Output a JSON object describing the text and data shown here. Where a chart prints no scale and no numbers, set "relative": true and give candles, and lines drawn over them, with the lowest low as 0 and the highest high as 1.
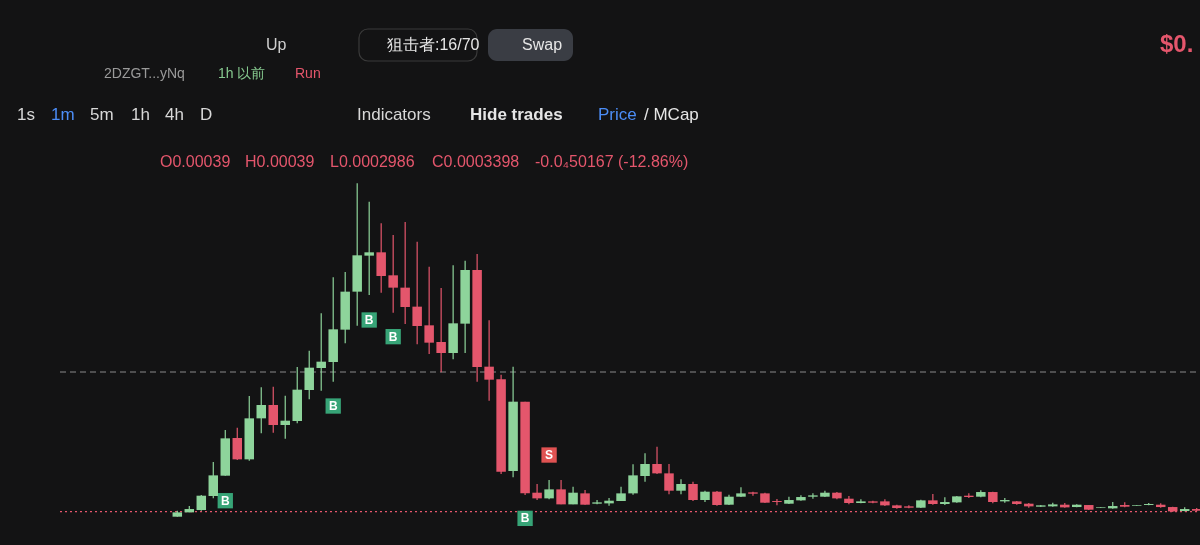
{
  "chart_data": {
    "type": "candlestick",
    "relative": true,
    "categories": [
      null,
      null,
      null,
      null,
      null,
      null,
      null,
      null,
      null,
      null,
      null,
      null,
      null,
      null,
      null,
      null,
      null,
      null,
      null,
      null,
      null,
      null,
      null,
      null,
      null,
      null,
      null,
      null,
      null,
      null,
      null,
      null,
      null,
      null,
      null,
      null,
      null,
      null,
      null,
      null,
      null,
      null,
      null,
      null,
      null,
      null,
      null,
      null,
      null,
      null,
      null,
      null,
      null,
      null,
      null,
      null,
      null,
      null,
      null,
      null,
      null,
      null,
      null,
      null,
      null,
      null,
      null,
      null,
      null,
      null,
      null,
      null,
      null,
      null,
      null,
      null,
      null,
      null,
      null,
      null,
      null,
      null,
      null,
      null,
      null,
      null
    ],
    "ohlc": [
      [
        0,
        0.018,
        0,
        0.013
      ],
      [
        0.013,
        0.032,
        0.013,
        0.023
      ],
      [
        0.02,
        0.065,
        0.018,
        0.063
      ],
      [
        0.062,
        0.164,
        0.055,
        0.124
      ],
      [
        0.123,
        0.26,
        0.123,
        0.235
      ],
      [
        0.236,
        0.267,
        0.17,
        0.172
      ],
      [
        0.172,
        0.362,
        0.168,
        0.295
      ],
      [
        0.295,
        0.388,
        0.25,
        0.335
      ],
      [
        0.335,
        0.39,
        0.252,
        0.275
      ],
      [
        0.275,
        0.363,
        0.234,
        0.288
      ],
      [
        0.287,
        0.449,
        0.28,
        0.381
      ],
      [
        0.38,
        0.498,
        0.352,
        0.447
      ],
      [
        0.446,
        0.61,
        0.378,
        0.465
      ],
      [
        0.464,
        0.718,
        0.405,
        0.562
      ],
      [
        0.561,
        0.734,
        0.52,
        0.675
      ],
      [
        0.675,
        1,
        0.573,
        0.784
      ],
      [
        0.783,
        0.945,
        0.665,
        0.793
      ],
      [
        0.793,
        0.88,
        0.672,
        0.722
      ],
      [
        0.724,
        0.845,
        0.612,
        0.687
      ],
      [
        0.687,
        0.884,
        0.578,
        0.629
      ],
      [
        0.63,
        0.825,
        0.517,
        0.572
      ],
      [
        0.574,
        0.75,
        0.488,
        0.522
      ],
      [
        0.524,
        0.686,
        0.433,
        0.491
      ],
      [
        0.491,
        0.754,
        0.472,
        0.58
      ],
      [
        0.579,
        0.768,
        0.491,
        0.74
      ],
      [
        0.74,
        0.788,
        0.405,
        0.449
      ],
      [
        0.45,
        0.589,
        0.348,
        0.411
      ],
      [
        0.412,
        0.426,
        0.128,
        0.135
      ],
      [
        0.137,
        0.45,
        0.118,
        0.345
      ],
      [
        0.345,
        0.345,
        0.065,
        0.07
      ],
      [
        0.072,
        0.098,
        0.05,
        0.055
      ],
      [
        0.055,
        0.11,
        0.052,
        0.082
      ],
      [
        0.082,
        0.11,
        0.037,
        0.037
      ],
      [
        0.037,
        0.09,
        0.037,
        0.072
      ],
      [
        0.07,
        0.08,
        0.036,
        0.036
      ],
      [
        0.039,
        0.05,
        0.037,
        0.043
      ],
      [
        0.04,
        0.056,
        0.033,
        0.048
      ],
      [
        0.047,
        0.09,
        0.047,
        0.07
      ],
      [
        0.07,
        0.157,
        0.066,
        0.124
      ],
      [
        0.122,
        0.19,
        0.105,
        0.158
      ],
      [
        0.158,
        0.21,
        0.128,
        0.13
      ],
      [
        0.13,
        0.158,
        0.067,
        0.078
      ],
      [
        0.078,
        0.112,
        0.067,
        0.098
      ],
      [
        0.098,
        0.105,
        0.047,
        0.05
      ],
      [
        0.05,
        0.078,
        0.044,
        0.075
      ],
      [
        0.075,
        0.077,
        0.033,
        0.035
      ],
      [
        0.036,
        0.066,
        0.035,
        0.06
      ],
      [
        0.06,
        0.088,
        0.059,
        0.07
      ],
      [
        0.073,
        0.075,
        0.063,
        0.069
      ],
      [
        0.07,
        0.072,
        0.041,
        0.042
      ],
      [
        0.047,
        0.053,
        0.034,
        0.044
      ],
      [
        0.039,
        0.06,
        0.038,
        0.05
      ],
      [
        0.049,
        0.064,
        0.048,
        0.059
      ],
      [
        0.06,
        0.07,
        0.054,
        0.064
      ],
      [
        0.06,
        0.078,
        0.059,
        0.072
      ],
      [
        0.072,
        0.074,
        0.052,
        0.055
      ],
      [
        0.054,
        0.062,
        0.037,
        0.041
      ],
      [
        0.041,
        0.052,
        0.04,
        0.046
      ],
      [
        0.046,
        0.048,
        0.04,
        0.042
      ],
      [
        0.046,
        0.052,
        0.032,
        0.034
      ],
      [
        0.034,
        0.036,
        0.024,
        0.026
      ],
      [
        0.031,
        0.034,
        0.025,
        0.027
      ],
      [
        0.027,
        0.051,
        0.026,
        0.049
      ],
      [
        0.049,
        0.068,
        0.036,
        0.038
      ],
      [
        0.038,
        0.058,
        0.035,
        0.044
      ],
      [
        0.043,
        0.062,
        0.042,
        0.061
      ],
      [
        0.063,
        0.07,
        0.056,
        0.059
      ],
      [
        0.06,
        0.079,
        0.058,
        0.074
      ],
      [
        0.074,
        0.075,
        0.04,
        0.044
      ],
      [
        0.046,
        0.056,
        0.042,
        0.05
      ],
      [
        0.046,
        0.047,
        0.036,
        0.038
      ],
      [
        0.039,
        0.041,
        0.027,
        0.031
      ],
      [
        0.03,
        0.035,
        0.029,
        0.034
      ],
      [
        0.031,
        0.042,
        0.03,
        0.037
      ],
      [
        0.036,
        0.041,
        0.027,
        0.028
      ],
      [
        0.029,
        0.037,
        0.028,
        0.036
      ],
      [
        0.035,
        0.035,
        0.02,
        0.021
      ],
      [
        0.026,
        0.028,
        0.026,
        0.028
      ],
      [
        0.025,
        0.044,
        0.024,
        0.032
      ],
      [
        0.035,
        0.043,
        0.028,
        0.03
      ],
      [
        0.033,
        0.035,
        0.033,
        0.035
      ],
      [
        0.035,
        0.041,
        0.034,
        0.038
      ],
      [
        0.036,
        0.04,
        0.027,
        0.029
      ],
      [
        0.029,
        0.03,
        0.014,
        0.016
      ],
      [
        0.017,
        0.028,
        0.016,
        0.023
      ],
      [
        0.023,
        0.026,
        0.016,
        0.018
      ]
    ],
    "colors": [
      "#8ed49b",
      "#8ed49b",
      "#8ed49b",
      "#8ed49b",
      "#8ed49b",
      "#e4566c",
      "#8ed49b",
      "#8ed49b",
      "#e4566c",
      "#8ed49b",
      "#8ed49b",
      "#8ed49b",
      "#8ed49b",
      "#8ed49b",
      "#8ed49b",
      "#8ed49b",
      "#8ed49b",
      "#e4566c",
      "#e4566c",
      "#e4566c",
      "#e4566c",
      "#e4566c",
      "#e4566c",
      "#8ed49b",
      "#8ed49b",
      "#e4566c",
      "#e4566c",
      "#e4566c",
      "#8ed49b",
      "#e4566c",
      "#e4566c",
      "#8ed49b",
      "#e4566c",
      "#8ed49b",
      "#e4566c",
      "#8ed49b",
      "#8ed49b",
      "#8ed49b",
      "#8ed49b",
      "#8ed49b",
      "#e4566c",
      "#e4566c",
      "#8ed49b",
      "#e4566c",
      "#8ed49b",
      "#e4566c",
      "#8ed49b",
      "#8ed49b",
      "#e4566c",
      "#e4566c",
      "#e4566c",
      "#8ed49b",
      "#8ed49b",
      "#8ed49b",
      "#8ed49b",
      "#e4566c",
      "#e4566c",
      "#8ed49b",
      "#e4566c",
      "#e4566c",
      "#e4566c",
      "#e4566c",
      "#8ed49b",
      "#e4566c",
      "#8ed49b",
      "#8ed49b",
      "#e4566c",
      "#8ed49b",
      "#e4566c",
      "#8ed49b",
      "#e4566c",
      "#e4566c",
      "#8ed49b",
      "#8ed49b",
      "#e4566c",
      "#8ed49b",
      "#e4566c",
      "#8ed49b",
      "#8ed49b",
      "#e4566c",
      "#8ed49b",
      "#8ed49b",
      "#e4566c",
      "#e4566c",
      "#8ed49b",
      "#e4566c"
    ],
    "series": [
      {
        "name": "B",
        "type": "scatter",
        "marker": "square",
        "color": "#37a477",
        "values": [
          null,
          null,
          null,
          null,
          0.048,
          null,
          null,
          null,
          null,
          null,
          null,
          null,
          null,
          0.332,
          null,
          null,
          0.59,
          null,
          0.54,
          null,
          null,
          null,
          null,
          null,
          null,
          null,
          null,
          null,
          null,
          -0.005,
          null,
          null,
          null,
          null,
          null,
          null,
          null,
          null,
          null,
          null,
          null,
          null,
          null,
          null,
          null,
          null,
          null,
          null,
          null,
          null,
          null,
          null,
          null,
          null,
          null,
          null,
          null,
          null,
          null,
          null,
          null,
          null,
          null,
          null,
          null,
          null,
          null,
          null,
          null,
          null,
          null,
          null,
          null,
          null,
          null,
          null,
          null,
          null,
          null,
          null,
          null,
          null,
          null,
          null,
          null,
          null
        ]
      },
      {
        "name": "S",
        "type": "scatter",
        "marker": "square",
        "color": "#e05252",
        "values": [
          null,
          null,
          null,
          null,
          null,
          null,
          null,
          null,
          null,
          null,
          null,
          null,
          null,
          null,
          null,
          null,
          null,
          null,
          null,
          null,
          null,
          null,
          null,
          null,
          null,
          null,
          null,
          null,
          null,
          null,
          null,
          0.185,
          null,
          null,
          null,
          null,
          null,
          null,
          null,
          null,
          null,
          null,
          null,
          null,
          null,
          null,
          null,
          null,
          null,
          null,
          null,
          null,
          null,
          null,
          null,
          null,
          null,
          null,
          null,
          null,
          null,
          null,
          null,
          null,
          null,
          null,
          null,
          null,
          null,
          null,
          null,
          null,
          null,
          null,
          null,
          null,
          null,
          null,
          null,
          null,
          null,
          null,
          null,
          null,
          null,
          null
        ]
      }
    ],
    "ref_lines": [
      {
        "axis": "y",
        "value": 0.434,
        "color": "#8a8a8a",
        "line_style": "dashed"
      },
      {
        "axis": "y",
        "value": 0.015,
        "color": "#e4566c",
        "line_style": "dotted"
      }
    ],
    "annotations": [
      "Up",
      "狙击者:16/70",
      "Swap",
      "$0.",
      "2DZGT...yNq",
      "1h 以前",
      "Run",
      "1s",
      "1m",
      "5m",
      "1h",
      "4h",
      "D",
      "Indicators",
      "Hide trades",
      "Price",
      "/ MCap",
      "O0.00039",
      "H0.00039",
      "L0.0002986",
      "C0.0003398",
      "-0.0₄50167 (-12.86%)"
    ]
  }
}
